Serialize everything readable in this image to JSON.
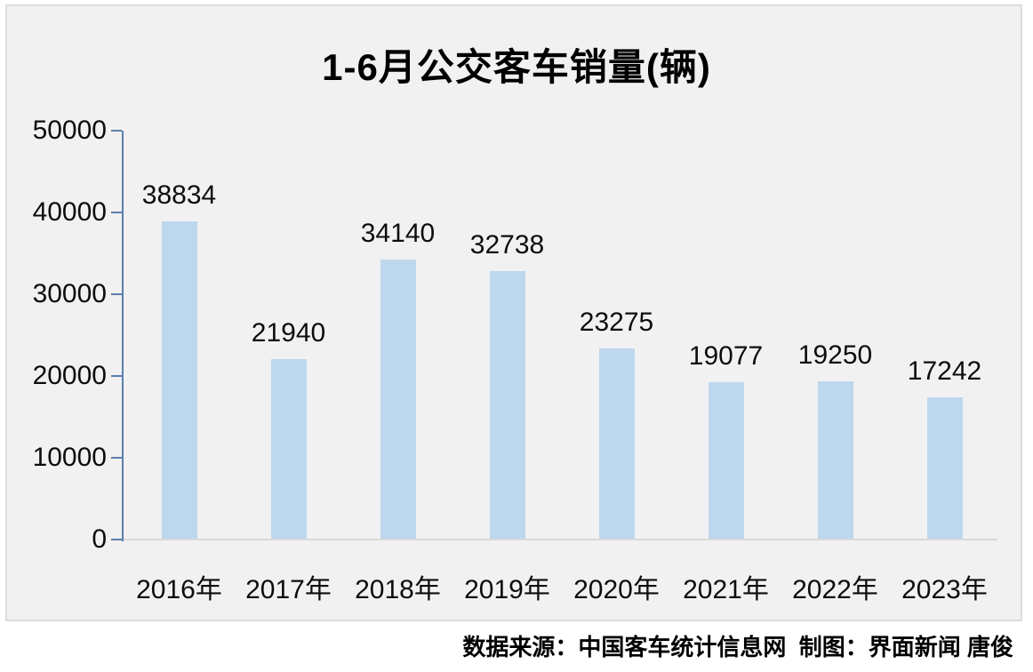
{
  "title": "1-6月公交客车销量(辆)",
  "footer": {
    "credit_line": "数据来源：中国客车统计信息网  制图：界面新闻 唐俊"
  },
  "colors": {
    "bar": "#bdd7ee",
    "axis": "#5b7fad",
    "baseline": "#d9d9d9",
    "card_background": "#f1f1f1",
    "card_border": "#dcdcdc",
    "page_background": "#ffffff",
    "text": "#000000"
  },
  "chart_data": {
    "type": "bar",
    "title": "1-6月公交客车销量(辆)",
    "categories": [
      "2016年",
      "2017年",
      "2018年",
      "2019年",
      "2020年",
      "2021年",
      "2022年",
      "2023年"
    ],
    "values": [
      38834,
      21940,
      34140,
      32738,
      23275,
      19077,
      19250,
      17242
    ],
    "xlabel": "",
    "ylabel": "",
    "ylim": [
      0,
      50000
    ],
    "yticks": [
      0,
      10000,
      20000,
      30000,
      40000,
      50000
    ],
    "grid": false,
    "legend": null,
    "data_labels": true
  }
}
